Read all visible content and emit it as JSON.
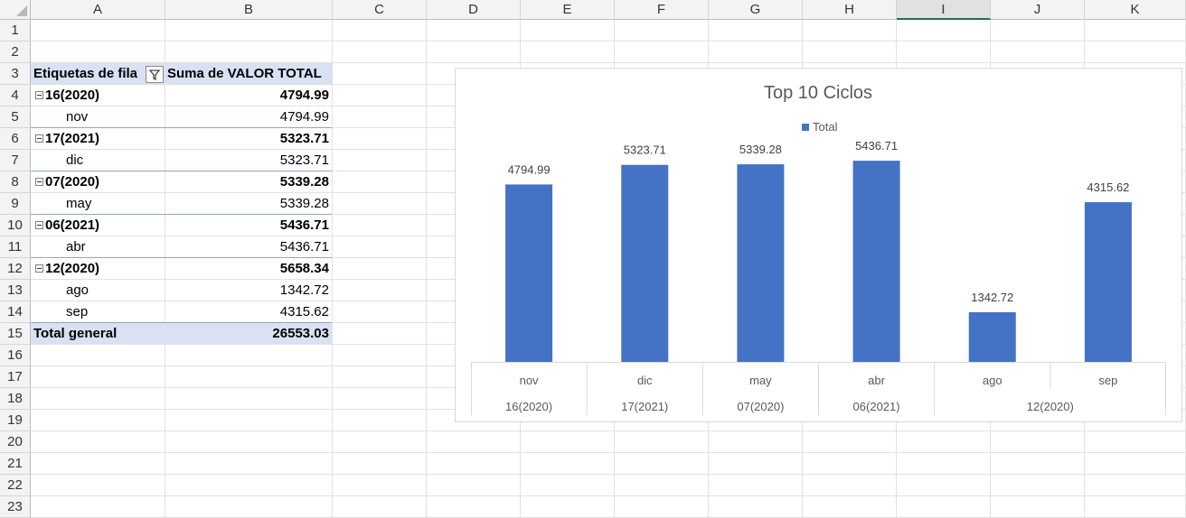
{
  "columns": [
    "A",
    "B",
    "C",
    "D",
    "E",
    "F",
    "G",
    "H",
    "I",
    "J",
    "K"
  ],
  "selected_column": "I",
  "rows": [
    "1",
    "2",
    "3",
    "4",
    "5",
    "6",
    "7",
    "8",
    "9",
    "10",
    "11",
    "12",
    "13",
    "14",
    "15",
    "16",
    "17",
    "18",
    "19",
    "20",
    "21",
    "22",
    "23"
  ],
  "pivot": {
    "header_label": "Etiquetas de fila",
    "header_value": "Suma de VALOR TOTAL",
    "filter_icon": "filter-icon",
    "groups": [
      {
        "label": "16(2020)",
        "total": "4794.99",
        "items": [
          {
            "label": "nov",
            "value": "4794.99"
          }
        ]
      },
      {
        "label": "17(2021)",
        "total": "5323.71",
        "items": [
          {
            "label": "dic",
            "value": "5323.71"
          }
        ]
      },
      {
        "label": "07(2020)",
        "total": "5339.28",
        "items": [
          {
            "label": "may",
            "value": "5339.28"
          }
        ]
      },
      {
        "label": "06(2021)",
        "total": "5436.71",
        "items": [
          {
            "label": "abr",
            "value": "5436.71"
          }
        ]
      },
      {
        "label": "12(2020)",
        "total": "5658.34",
        "items": [
          {
            "label": "ago",
            "value": "1342.72"
          },
          {
            "label": "sep",
            "value": "4315.62"
          }
        ]
      }
    ],
    "grand_total_label": "Total general",
    "grand_total_value": "26553.03"
  },
  "chart_data": {
    "type": "bar",
    "title": "Top 10 Ciclos",
    "legend": {
      "position": "top",
      "entries": [
        "Total"
      ]
    },
    "series": [
      {
        "name": "Total",
        "color": "#4472c4",
        "values": [
          4794.99,
          5323.71,
          5339.28,
          5436.71,
          1342.72,
          4315.62
        ]
      }
    ],
    "categories": [
      "nov",
      "dic",
      "may",
      "abr",
      "ago",
      "sep"
    ],
    "group_labels": [
      "16(2020)",
      "17(2021)",
      "07(2020)",
      "06(2021)",
      "12(2020)"
    ],
    "group_spans": [
      1,
      1,
      1,
      1,
      2
    ],
    "data_labels": [
      "4794.99",
      "5323.71",
      "5339.28",
      "5436.71",
      "1342.72",
      "4315.62"
    ],
    "ylim": [
      0,
      6000
    ],
    "grid": false
  }
}
